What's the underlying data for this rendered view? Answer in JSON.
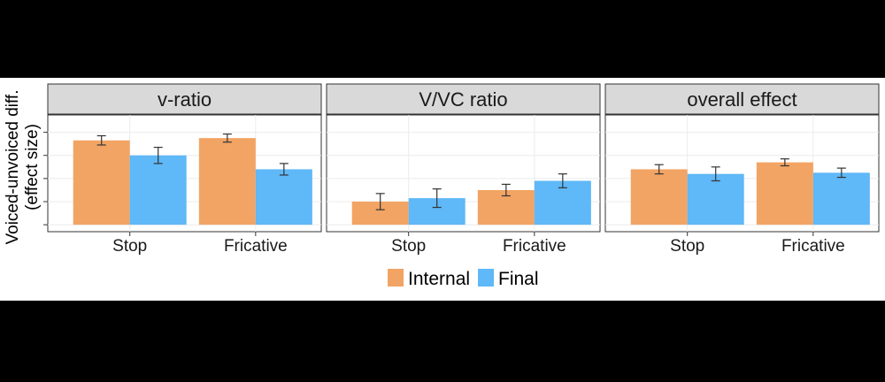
{
  "chart_data": {
    "type": "bar",
    "ylabel": "Voiced-unvoiced diff.\n(effect size)",
    "categories": [
      "Stop",
      "Fricative"
    ],
    "legend": {
      "placement": "bottom",
      "entries": [
        "Internal",
        "Final"
      ]
    },
    "colors": {
      "Internal": "#F2A464",
      "Final": "#5FB8F7"
    },
    "yticks": [
      0,
      0.2,
      0.4,
      0.6,
      0.8
    ],
    "ylim": [
      -0.06,
      0.95
    ],
    "grid": true,
    "panels": [
      {
        "title": "v-ratio",
        "series": [
          {
            "name": "Internal",
            "values": [
              0.73,
              0.75
            ],
            "errors": [
              0.04,
              0.035
            ]
          },
          {
            "name": "Final",
            "values": [
              0.6,
              0.48
            ],
            "errors": [
              0.07,
              0.05
            ]
          }
        ]
      },
      {
        "title": "V/VC ratio",
        "series": [
          {
            "name": "Internal",
            "values": [
              0.2,
              0.3
            ],
            "errors": [
              0.07,
              0.05
            ]
          },
          {
            "name": "Final",
            "values": [
              0.23,
              0.38
            ],
            "errors": [
              0.08,
              0.06
            ]
          }
        ]
      },
      {
        "title": "overall effect",
        "series": [
          {
            "name": "Internal",
            "values": [
              0.48,
              0.54
            ],
            "errors": [
              0.04,
              0.03
            ]
          },
          {
            "name": "Final",
            "values": [
              0.44,
              0.45
            ],
            "errors": [
              0.06,
              0.04
            ]
          }
        ]
      }
    ]
  }
}
